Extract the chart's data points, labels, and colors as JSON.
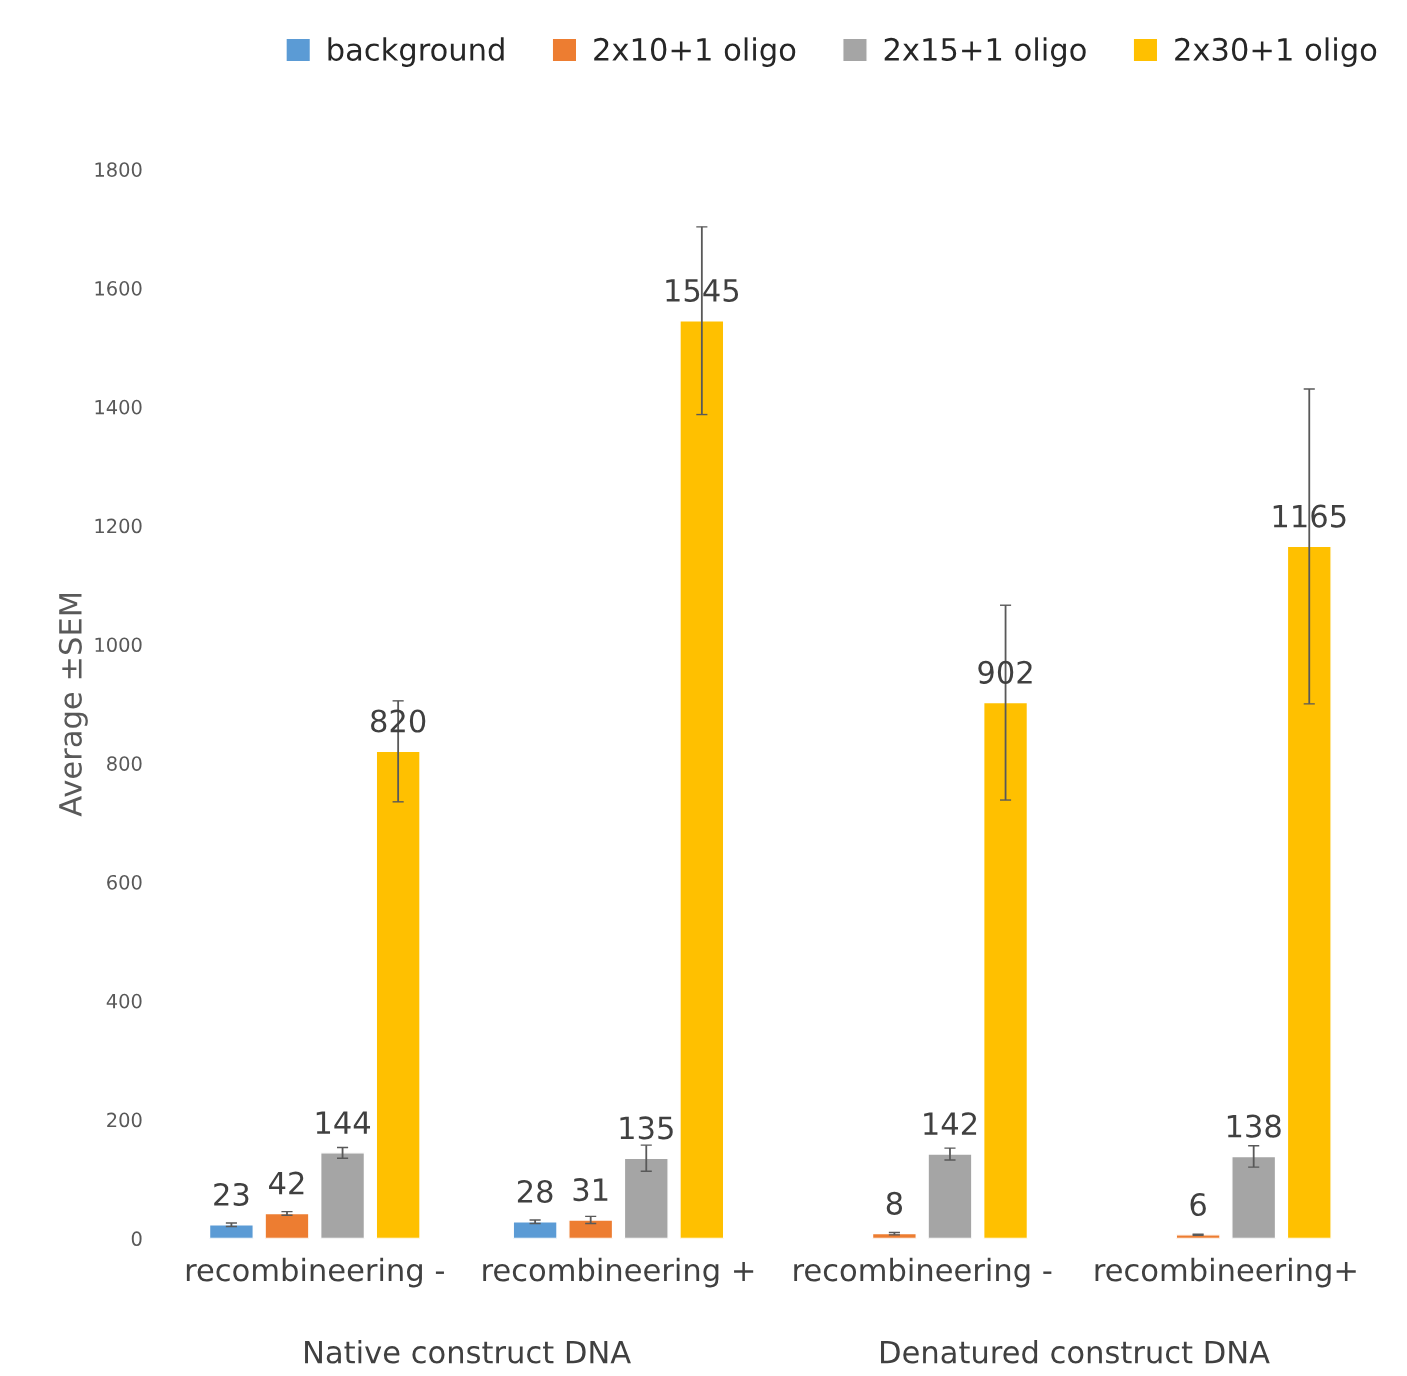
{
  "chart_data": {
    "type": "bar",
    "ylabel": "Average ±SEM",
    "categories": [
      "recombineering -",
      "recombineering +",
      "recombineering -",
      "recombineering+"
    ],
    "series": [
      {
        "name": "background",
        "color": "#5b9bd5",
        "values": [
          23,
          28,
          null,
          null
        ],
        "errors": [
          3,
          3,
          null,
          null
        ]
      },
      {
        "name": "2x10+1 oligo",
        "color": "#ed7d31",
        "values": [
          42,
          31,
          8,
          6
        ],
        "errors": [
          3,
          6,
          2,
          1
        ]
      },
      {
        "name": "2x15+1 oligo",
        "color": "#a5a5a5",
        "values": [
          144,
          135,
          142,
          138
        ],
        "errors": [
          9,
          22,
          10,
          18
        ]
      },
      {
        "name": "2x30+1 oligo",
        "color": "#ffc000",
        "values": [
          820,
          1545,
          902,
          1165
        ],
        "errors": [
          85,
          158,
          164,
          265
        ]
      }
    ],
    "annotations": [
      "Native construct DNA",
      "Denatured construct DNA"
    ],
    "ylim": [
      0,
      1800
    ],
    "yticks": [
      0,
      200,
      400,
      600,
      800,
      1000,
      1200,
      1400,
      1600,
      1800
    ],
    "data_labels": true,
    "grid": false,
    "legend": "top right"
  }
}
